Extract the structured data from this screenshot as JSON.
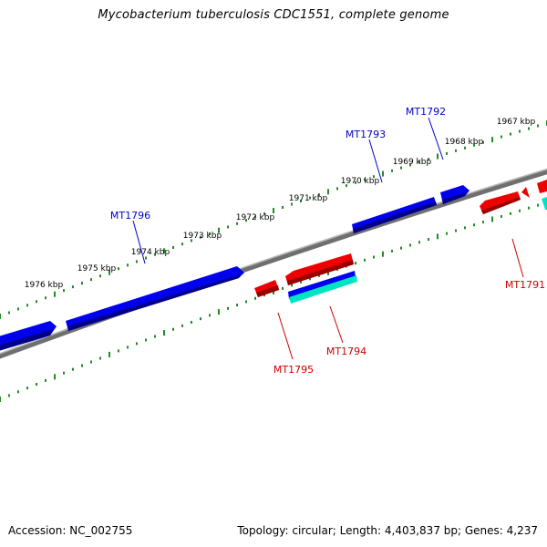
{
  "title": "Mycobacterium tuberculosis CDC1551, complete genome",
  "footer": {
    "accession": "Accession: NC_002755",
    "summary": "Topology: circular; Length: 4,403,837 bp; Genes: 4,237"
  },
  "colors": {
    "forward_gene": "#0000ee",
    "reverse_gene": "#ee0000",
    "other_feature": "#00e5c0",
    "backbone": "#808080",
    "scale_tick": "#228b22",
    "forward_label": "#0000cc",
    "reverse_label": "#cc0000"
  },
  "scale": {
    "unit": "kbp",
    "ticks": [
      {
        "label": "1967 kbp"
      },
      {
        "label": "1968 kbp"
      },
      {
        "label": "1969 kbp"
      },
      {
        "label": "1970 kbp"
      },
      {
        "label": "1971 kbp"
      },
      {
        "label": "1972 kbp"
      },
      {
        "label": "1973 kbp"
      },
      {
        "label": "1974 kbp"
      },
      {
        "label": "1975 kbp"
      },
      {
        "label": "1976 kbp"
      }
    ]
  },
  "genes": [
    {
      "id": "MT1791",
      "strand": "reverse"
    },
    {
      "id": "MT1792",
      "strand": "forward"
    },
    {
      "id": "MT1793",
      "strand": "forward"
    },
    {
      "id": "MT1794",
      "strand": "reverse"
    },
    {
      "id": "MT1795",
      "strand": "reverse"
    },
    {
      "id": "MT1796",
      "strand": "forward"
    }
  ]
}
